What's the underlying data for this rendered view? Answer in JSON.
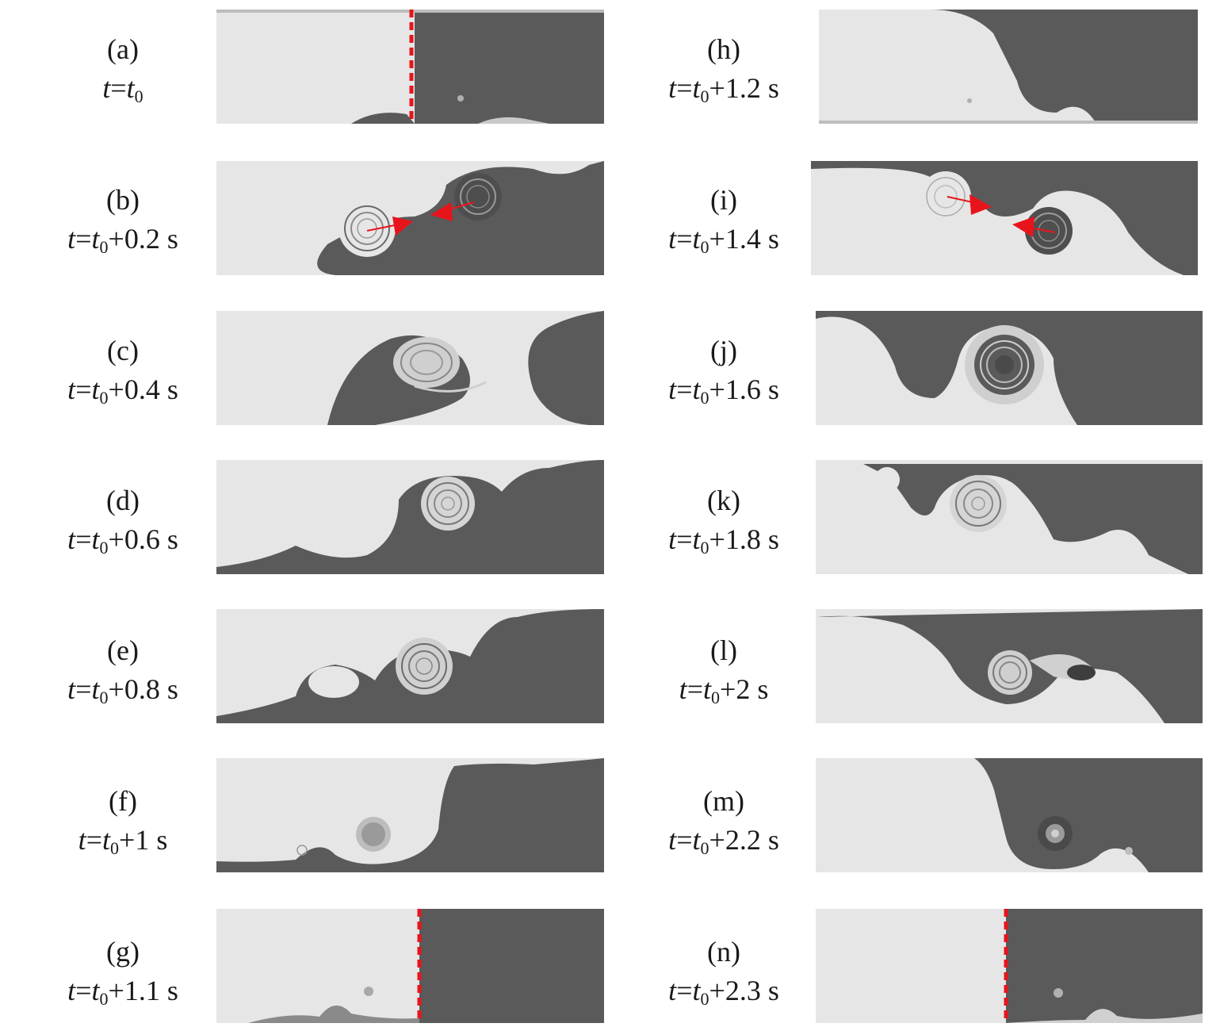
{
  "figure": {
    "panels": [
      {
        "tag": "(a)",
        "t": "t",
        "eq": "=",
        "t0": "t",
        "sub": "0",
        "offset": ""
      },
      {
        "tag": "(b)",
        "t": "t",
        "eq": "=",
        "t0": "t",
        "sub": "0",
        "offset": "+0.2 s"
      },
      {
        "tag": "(c)",
        "t": "t",
        "eq": "=",
        "t0": "t",
        "sub": "0",
        "offset": "+0.4 s"
      },
      {
        "tag": "(d)",
        "t": "t",
        "eq": "=",
        "t0": "t",
        "sub": "0",
        "offset": "+0.6 s"
      },
      {
        "tag": "(e)",
        "t": "t",
        "eq": "=",
        "t0": "t",
        "sub": "0",
        "offset": "+0.8 s"
      },
      {
        "tag": "(f)",
        "t": "t",
        "eq": "=",
        "t0": "t",
        "sub": "0",
        "offset": "+1 s"
      },
      {
        "tag": "(g)",
        "t": "t",
        "eq": "=",
        "t0": "t",
        "sub": "0",
        "offset": "+1.1 s"
      },
      {
        "tag": "(h)",
        "t": "t",
        "eq": "=",
        "t0": "t",
        "sub": "0",
        "offset": "+1.2 s"
      },
      {
        "tag": "(i)",
        "t": "t",
        "eq": "=",
        "t0": "t",
        "sub": "0",
        "offset": "+1.4 s"
      },
      {
        "tag": "(j)",
        "t": "t",
        "eq": "=",
        "t0": "t",
        "sub": "0",
        "offset": "+1.6 s"
      },
      {
        "tag": "(k)",
        "t": "t",
        "eq": "=",
        "t0": "t",
        "sub": "0",
        "offset": "+1.8 s"
      },
      {
        "tag": "(l)",
        "t": "t",
        "eq": "=",
        "t0": "t",
        "sub": "0",
        "offset": "+2 s"
      },
      {
        "tag": "(m)",
        "t": "t",
        "eq": "=",
        "t0": "t",
        "sub": "0",
        "offset": "+2.2 s"
      },
      {
        "tag": "(n)",
        "t": "t",
        "eq": "=",
        "t0": "t",
        "sub": "0",
        "offset": "+2.3 s"
      }
    ],
    "colors": {
      "light_fluid": "#e6e6e6",
      "dark_fluid": "#5a5a5a",
      "marker": "#e8141c"
    }
  }
}
